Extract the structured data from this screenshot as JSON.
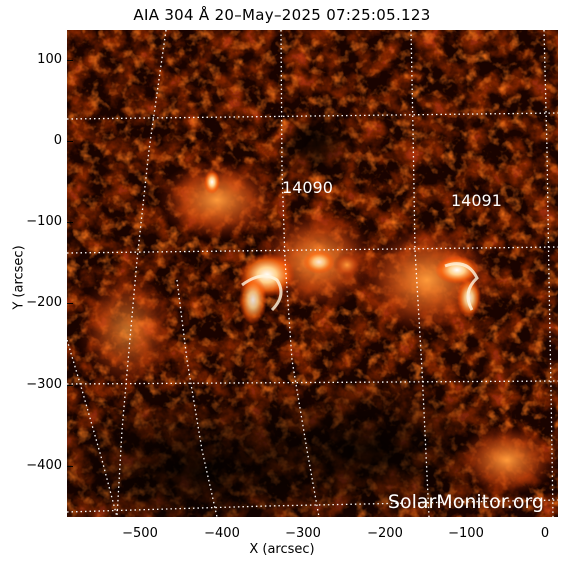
{
  "title": "AIA 304 Å 20–May–2025 07:25:05.123",
  "active_regions": [
    "14090",
    "14091"
  ],
  "watermark": "SolarMonitor.org",
  "axes": {
    "xlabel": "X (arcsec)",
    "ylabel": "Y (arcsec)",
    "x_ticks": [
      "−500",
      "−400",
      "−300",
      "−200",
      "−100",
      "0"
    ],
    "y_ticks": [
      "100",
      "0",
      "−100",
      "−200",
      "−300",
      "−400"
    ]
  },
  "colors": {
    "background": "#000000",
    "accent": "#ff6a00"
  }
}
